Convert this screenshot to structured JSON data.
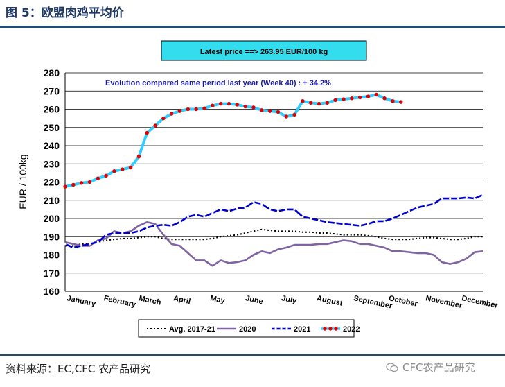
{
  "figure_title": "图 5：欧盟肉鸡平均价",
  "source_text": "资料来源：EC,CFC 农产品研究",
  "watermark_text": "CFC农产品研究",
  "colors": {
    "accent": "#1f4e79",
    "avg": "#000000",
    "s2020": "#8064a2",
    "s2021": "#0000cc",
    "s2022": "#33ccff",
    "s2022_marker": "#e00000",
    "latest_box": "#33ddee",
    "grid": "#000000"
  },
  "chart_data": {
    "type": "line",
    "title": "",
    "latest_label": "Latest price ==> 263.95 EUR/100 kg",
    "annotation": "Evolution compared same period last year (Week 40) : + 34.2%",
    "ylabel": "EUR / 100kg",
    "xlabel": "",
    "ylim": [
      160,
      280
    ],
    "yticks": [
      160,
      170,
      180,
      190,
      200,
      210,
      220,
      230,
      240,
      250,
      260,
      270,
      280
    ],
    "xlim": [
      1,
      52
    ],
    "grid": true,
    "legend_position": "bottom",
    "months": [
      {
        "label": "January",
        "week": 1
      },
      {
        "label": "February",
        "week": 5.5
      },
      {
        "label": "March",
        "week": 9.8
      },
      {
        "label": "April",
        "week": 14
      },
      {
        "label": "May",
        "week": 18.5
      },
      {
        "label": "June",
        "week": 22.8
      },
      {
        "label": "July",
        "week": 27.2
      },
      {
        "label": "August",
        "week": 31.5
      },
      {
        "label": "September",
        "week": 36
      },
      {
        "label": "October",
        "week": 40.3
      },
      {
        "label": "November",
        "week": 44.8
      },
      {
        "label": "December",
        "week": 49.2
      }
    ],
    "series": [
      {
        "name": "Avg. 2017-21",
        "style": "dotted",
        "values": [
          185,
          185,
          186,
          186,
          187,
          188,
          188.5,
          189,
          189,
          189.5,
          190,
          190,
          189,
          188.5,
          188.5,
          188.5,
          188.5,
          188.5,
          189,
          190,
          190.5,
          191,
          192,
          193,
          194,
          193.5,
          193,
          193,
          193,
          192.5,
          192.5,
          192,
          192,
          191.5,
          191,
          191,
          191,
          190.5,
          190,
          189,
          188.5,
          188.5,
          188.5,
          189,
          189.5,
          189.5,
          189,
          188.5,
          188.5,
          189,
          190,
          190
        ]
      },
      {
        "name": "2020",
        "style": "solid",
        "values": [
          187,
          186,
          185,
          185,
          188,
          189,
          193,
          192,
          193,
          196,
          198,
          197,
          191,
          186,
          185,
          181,
          177,
          177,
          174,
          177,
          175.5,
          176,
          177,
          180,
          182,
          181,
          183,
          184,
          185.5,
          185.5,
          185.5,
          186,
          186,
          187,
          188,
          187.5,
          186,
          186,
          185,
          184,
          182,
          182,
          181.5,
          181,
          181,
          180,
          176,
          175,
          176,
          178,
          181.5,
          182
        ]
      },
      {
        "name": "2021",
        "style": "markers-dark",
        "values": [
          186,
          184,
          185,
          186,
          187,
          191,
          192,
          192,
          192,
          193,
          195,
          196,
          196.5,
          196,
          198,
          201,
          202,
          201,
          203,
          205,
          204,
          205.5,
          206,
          209,
          208,
          205,
          204,
          205,
          205,
          201,
          200,
          199,
          198,
          197.5,
          197,
          196.5,
          196,
          197,
          198.5,
          198.5,
          200,
          202,
          204,
          206,
          207,
          208,
          211,
          211,
          211,
          211.5,
          211,
          213
        ]
      },
      {
        "name": "2022",
        "style": "markers-red",
        "values": [
          217.5,
          218.5,
          219.5,
          220,
          222,
          223.5,
          226,
          227,
          228,
          234,
          247,
          251,
          255,
          257.5,
          259,
          260,
          260,
          260.5,
          262,
          263,
          263,
          262.5,
          261.5,
          261,
          259.5,
          259,
          258.5,
          256,
          257,
          264.5,
          263.5,
          263,
          263.5,
          265,
          265.5,
          266,
          266.5,
          267,
          268,
          266,
          264.5,
          263.95
        ]
      }
    ]
  }
}
